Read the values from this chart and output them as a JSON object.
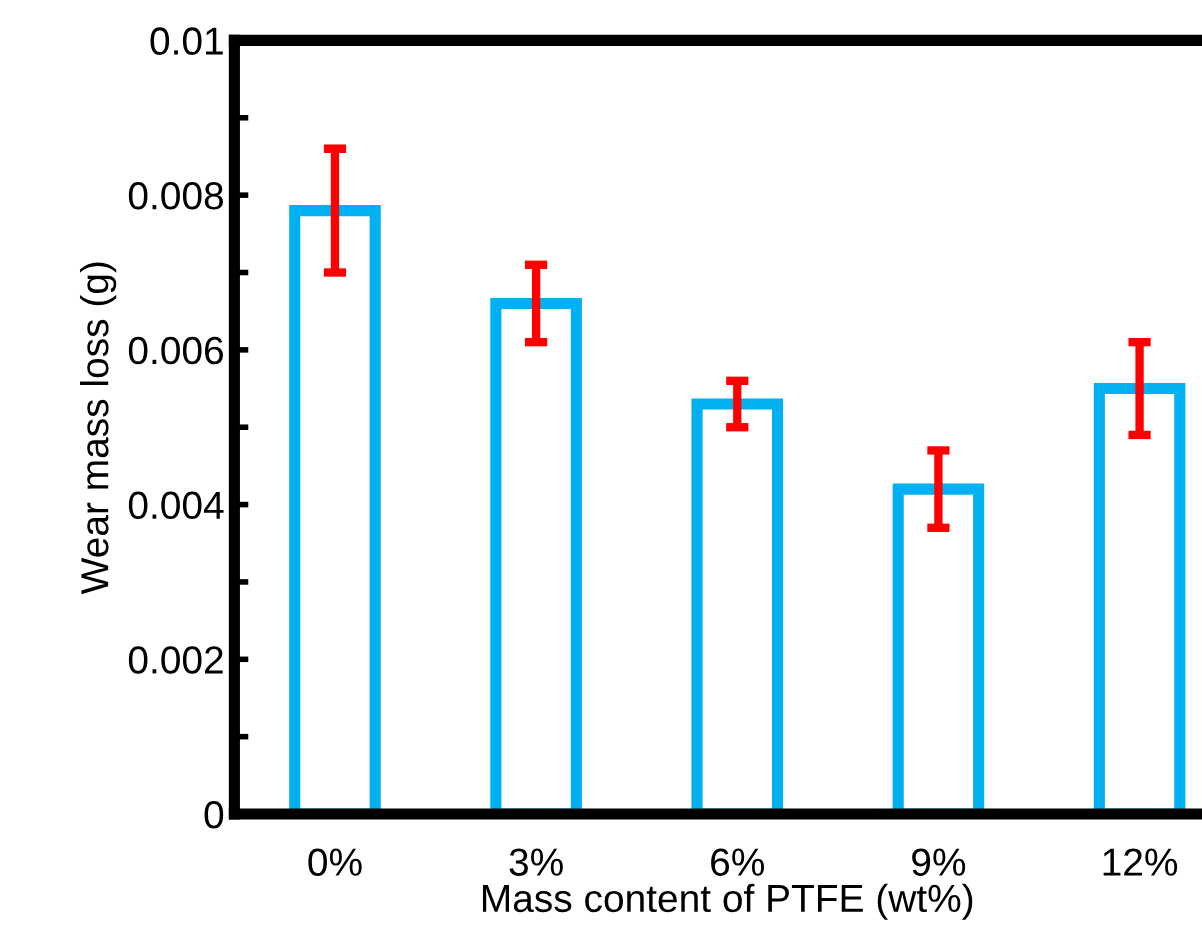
{
  "chart_data": {
    "type": "bar",
    "xlabel": "Mass content of PTFE (wt%)",
    "ylabel": "Wear mass loss (g)",
    "categories": [
      "0%",
      "3%",
      "6%",
      "9%",
      "12%"
    ],
    "series": [
      {
        "color": "#00b0f0",
        "values": [
          0.0078,
          0.0066,
          0.0053,
          0.0042,
          0.0055
        ],
        "errors": [
          0.0008,
          0.0005,
          0.0003,
          0.0005,
          0.0006
        ]
      }
    ],
    "ylim": [
      0,
      0.01
    ],
    "yticks": [
      0,
      {
        "value": 0.001,
        "label": null
      },
      0.002,
      {
        "value": 0.003,
        "label": null
      },
      0.004,
      {
        "value": 0.005,
        "label": null
      },
      0.006,
      {
        "value": 0.007,
        "label": null
      },
      0.008,
      {
        "value": 0.009,
        "label": null
      },
      0.01
    ],
    "grid": false,
    "legend": false
  }
}
